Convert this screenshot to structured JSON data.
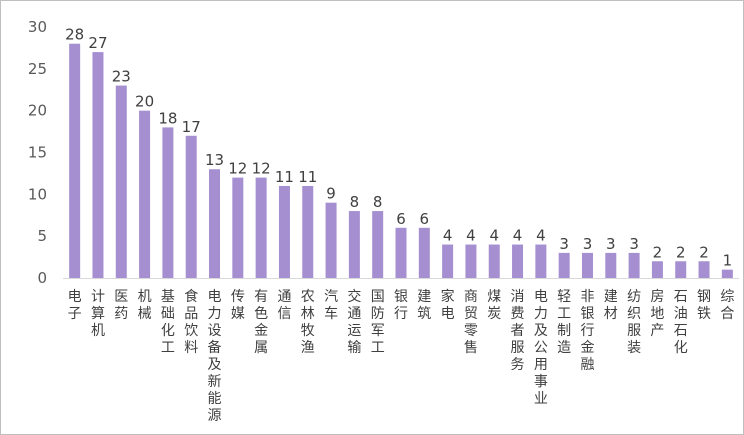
{
  "chart_data": {
    "type": "bar",
    "categories": [
      "电子",
      "计算机",
      "医药",
      "机械",
      "基础化工",
      "食品饮料",
      "电力设备及新能源",
      "传媒",
      "有色金属",
      "通信",
      "农林牧渔",
      "汽车",
      "交通运输",
      "国防军工",
      "银行",
      "建筑",
      "家电",
      "商贸零售",
      "煤炭",
      "消费者服务",
      "电力及公用事业",
      "轻工制造",
      "非银行金融",
      "建材",
      "纺织服装",
      "房地产",
      "石油石化",
      "钢铁",
      "综合"
    ],
    "values": [
      28,
      27,
      23,
      20,
      18,
      17,
      13,
      12,
      12,
      11,
      11,
      9,
      8,
      8,
      6,
      6,
      4,
      4,
      4,
      4,
      4,
      3,
      3,
      3,
      3,
      2,
      2,
      2,
      1
    ],
    "yticks": [
      0,
      5,
      10,
      15,
      20,
      25,
      30
    ],
    "ylim": [
      0,
      30
    ],
    "grid": false,
    "data_labels": true,
    "legend": "none",
    "colors": {
      "bar": "#a58fd0",
      "axis": "#d9d9d9",
      "text": "#404040"
    }
  }
}
